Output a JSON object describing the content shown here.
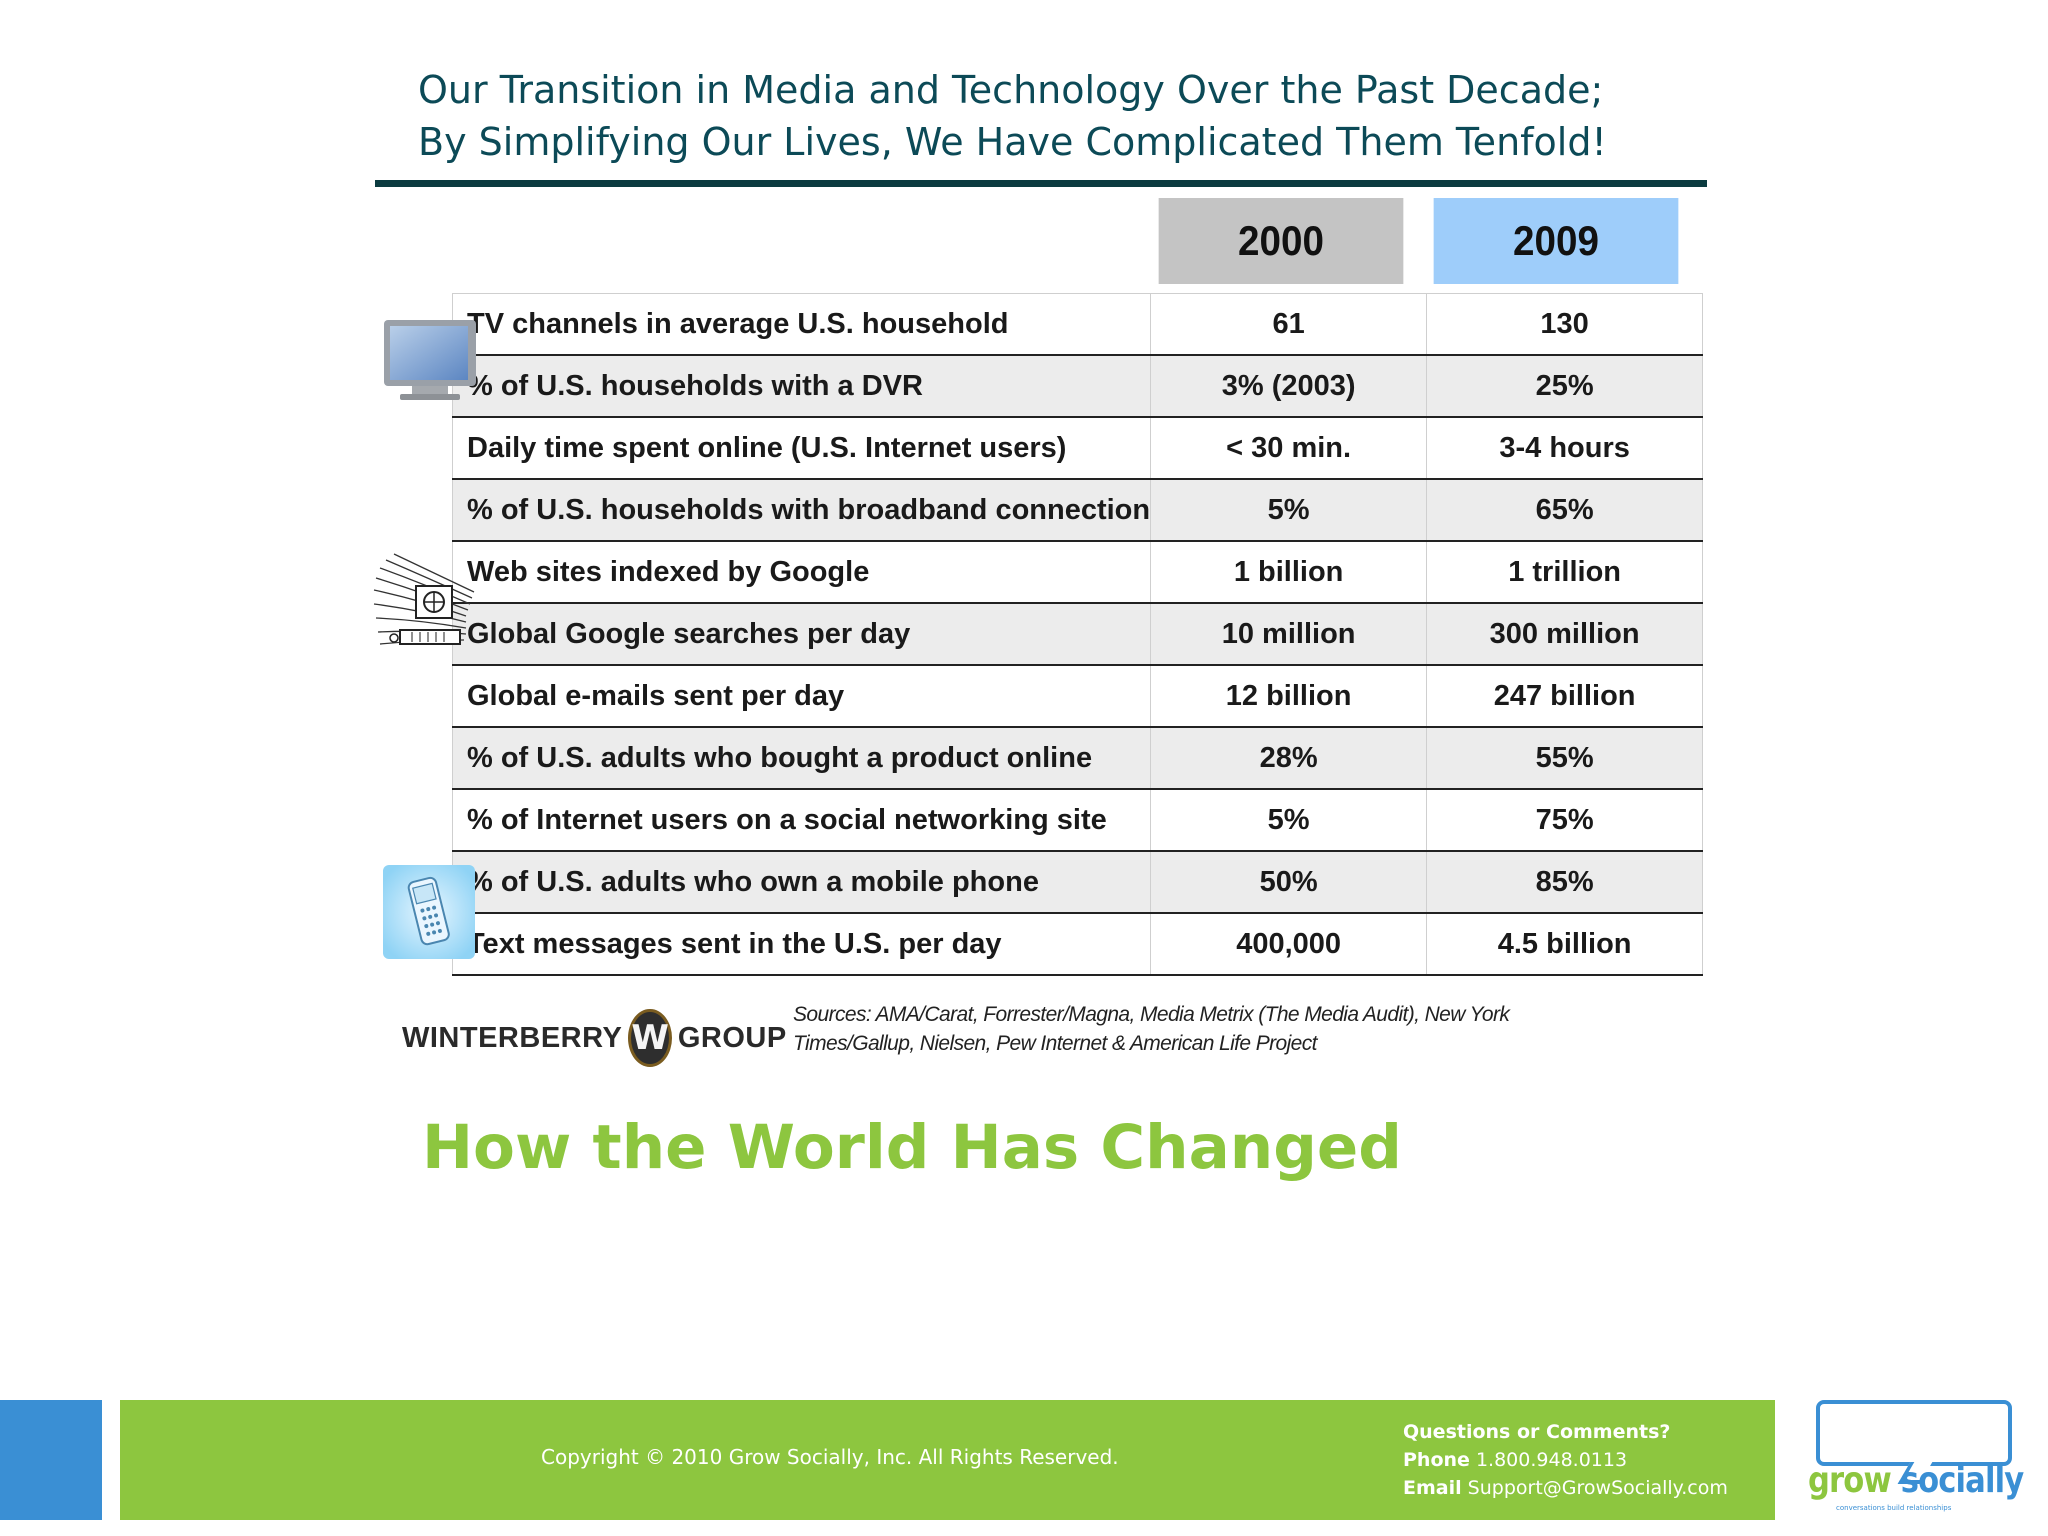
{
  "slide": {
    "title_line1": "Our Transition in Media and Technology Over the Past Decade;",
    "title_line2": "By Simplifying Our Lives, We Have Complicated Them Tenfold!",
    "headline": "How the World Has Changed"
  },
  "table": {
    "year_headers": [
      "2000",
      "2009"
    ],
    "rows": [
      {
        "label": "TV channels in average U.S. household",
        "v2000": "61",
        "v2009": "130"
      },
      {
        "label": "% of U.S. households with a DVR",
        "v2000": "3% (2003)",
        "v2009": "25%"
      },
      {
        "label": "Daily time spent online (U.S. Internet users)",
        "v2000": "< 30 min.",
        "v2009": "3-4 hours"
      },
      {
        "label": "% of U.S. households with broadband connection",
        "v2000": "5%",
        "v2009": "65%"
      },
      {
        "label": "Web sites indexed by Google",
        "v2000": "1 billion",
        "v2009": "1 trillion"
      },
      {
        "label": "Global Google searches per day",
        "v2000": "10 million",
        "v2009": "300 million"
      },
      {
        "label": "Global e-mails sent per day",
        "v2000": "12 billion",
        "v2009": "247 billion"
      },
      {
        "label": "% of U.S. adults who bought a product online",
        "v2000": "28%",
        "v2009": "55%"
      },
      {
        "label": "% of Internet users on a social networking site",
        "v2000": "5%",
        "v2009": "75%"
      },
      {
        "label": "% of U.S. adults who own a mobile phone",
        "v2000": "50%",
        "v2009": "85%"
      },
      {
        "label": "Text messages sent in the U.S. per day",
        "v2000": "400,000",
        "v2009": "4.5 billion"
      }
    ]
  },
  "icons": {
    "tv": "tv-icon",
    "computer": "computer-icon",
    "phone": "mobile-phone-icon"
  },
  "logo_winterberry": {
    "left_word": "WINTERBERRY",
    "letter": "W",
    "right_word": "GROUP"
  },
  "sources": {
    "line1": "Sources: AMA/Carat, Forrester/Magna, Media Metrix (The Media Audit), New York",
    "line2": "Times/Gallup, Nielsen, Pew Internet & American Life Project"
  },
  "footer": {
    "copyright": "Copyright © 2010 Grow Socially, Inc. All Rights Reserved.",
    "questions": "Questions or Comments?",
    "phone_label": "Phone",
    "phone_value": "1.800.948.0113",
    "email_label": "Email",
    "email_value": "Support@GrowSocially.com"
  },
  "logo_grow": {
    "word1": "grow",
    "word2": "socially",
    "tagline": "conversations build relationships"
  },
  "colors": {
    "title": "#0c4a57",
    "headline_green": "#8dc63f",
    "footer_green": "#8dc63f",
    "footer_blue": "#3a8fd4",
    "header_2000": "#c4c4c4",
    "header_2009": "#9ecdfa"
  }
}
